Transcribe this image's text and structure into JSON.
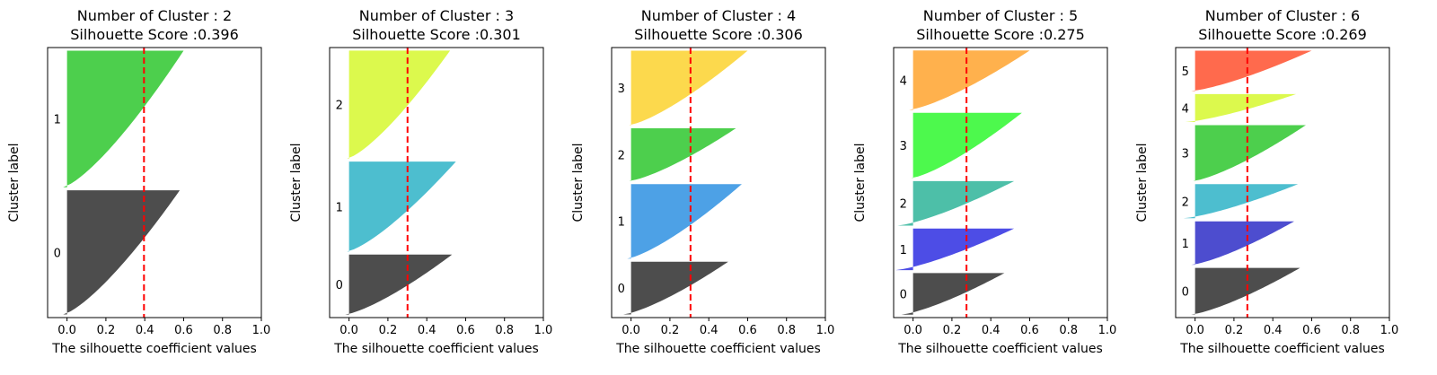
{
  "figure": {
    "xlabel": "The silhouette coefficient values",
    "ylabel": "Cluster label",
    "xlim": [
      -0.1,
      1.0
    ],
    "xticks": [
      0.0,
      0.2,
      0.4,
      0.6,
      0.8,
      1.0
    ],
    "xtick_labels": [
      "0.0",
      "0.2",
      "0.4",
      "0.6",
      "0.8",
      "1.0"
    ],
    "mean_line_color": "#ff0000",
    "chart_type": "silhouette"
  },
  "chart_data": [
    {
      "type": "area",
      "title": "Number of Cluster : 2",
      "subtitle": "Silhouette Score :0.396",
      "n_clusters": 2,
      "silhouette_score": 0.396,
      "xlabel": "The silhouette coefficient values",
      "ylabel": "Cluster label",
      "xlim": [
        -0.1,
        1.0
      ],
      "clusters": [
        {
          "label": "0",
          "size": 400,
          "min": -0.02,
          "max": 0.58,
          "color": "#4d4d4d"
        },
        {
          "label": "1",
          "size": 440,
          "min": -0.02,
          "max": 0.6,
          "color": "#4dcf4d"
        }
      ]
    },
    {
      "type": "area",
      "title": "Number of Cluster : 3",
      "subtitle": "Silhouette Score :0.301",
      "n_clusters": 3,
      "silhouette_score": 0.301,
      "xlabel": "The silhouette coefficient values",
      "ylabel": "Cluster label",
      "xlim": [
        -0.1,
        1.0
      ],
      "clusters": [
        {
          "label": "0",
          "size": 200,
          "min": -0.02,
          "max": 0.53,
          "color": "#4d4d4d"
        },
        {
          "label": "1",
          "size": 300,
          "min": -0.01,
          "max": 0.55,
          "color": "#4dbecf"
        },
        {
          "label": "2",
          "size": 360,
          "min": -0.01,
          "max": 0.52,
          "color": "#dcf94d"
        }
      ]
    },
    {
      "type": "area",
      "title": "Number of Cluster : 4",
      "subtitle": "Silhouette Score :0.306",
      "n_clusters": 4,
      "silhouette_score": 0.306,
      "xlabel": "The silhouette coefficient values",
      "ylabel": "Cluster label",
      "xlim": [
        -0.1,
        1.0
      ],
      "clusters": [
        {
          "label": "0",
          "size": 170,
          "min": -0.04,
          "max": 0.5,
          "color": "#4d4d4d"
        },
        {
          "label": "1",
          "size": 240,
          "min": -0.02,
          "max": 0.57,
          "color": "#4da1e6"
        },
        {
          "label": "2",
          "size": 170,
          "min": -0.01,
          "max": 0.54,
          "color": "#4dcf4d"
        },
        {
          "label": "3",
          "size": 240,
          "min": -0.01,
          "max": 0.6,
          "color": "#fcd94d"
        }
      ]
    },
    {
      "type": "area",
      "title": "Number of Cluster : 5",
      "subtitle": "Silhouette Score :0.275",
      "n_clusters": 5,
      "silhouette_score": 0.275,
      "xlabel": "The silhouette coefficient values",
      "ylabel": "Cluster label",
      "xlim": [
        -0.1,
        1.0
      ],
      "clusters": [
        {
          "label": "0",
          "size": 140,
          "min": -0.06,
          "max": 0.47,
          "color": "#4d4d4d"
        },
        {
          "label": "1",
          "size": 140,
          "min": -0.09,
          "max": 0.52,
          "color": "#4d4de6"
        },
        {
          "label": "2",
          "size": 150,
          "min": -0.08,
          "max": 0.52,
          "color": "#4dbfa8"
        },
        {
          "label": "3",
          "size": 220,
          "min": -0.01,
          "max": 0.56,
          "color": "#4df94d"
        },
        {
          "label": "4",
          "size": 200,
          "min": -0.02,
          "max": 0.6,
          "color": "#ffb14d"
        }
      ]
    },
    {
      "type": "area",
      "title": "Number of Cluster : 6",
      "subtitle": "Silhouette Score :0.269",
      "n_clusters": 6,
      "silhouette_score": 0.269,
      "xlabel": "The silhouette coefficient values",
      "ylabel": "Cluster label",
      "xlim": [
        -0.1,
        1.0
      ],
      "clusters": [
        {
          "label": "0",
          "size": 150,
          "min": -0.02,
          "max": 0.54,
          "color": "#4d4d4d"
        },
        {
          "label": "1",
          "size": 140,
          "min": -0.02,
          "max": 0.51,
          "color": "#4d4dcf"
        },
        {
          "label": "2",
          "size": 110,
          "min": -0.06,
          "max": 0.53,
          "color": "#4dbecf"
        },
        {
          "label": "3",
          "size": 180,
          "min": -0.01,
          "max": 0.57,
          "color": "#4dcf4d"
        },
        {
          "label": "4",
          "size": 90,
          "min": -0.05,
          "max": 0.52,
          "color": "#dcf94d"
        },
        {
          "label": "5",
          "size": 130,
          "min": -0.02,
          "max": 0.6,
          "color": "#ff6a4d"
        }
      ]
    }
  ]
}
